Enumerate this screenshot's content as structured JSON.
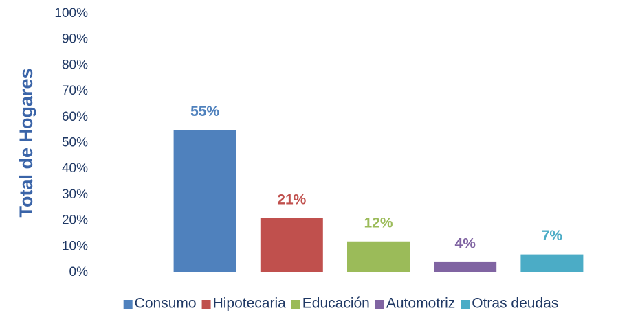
{
  "chart_data": {
    "type": "bar",
    "ylabel": "Total de Hogares",
    "series": [
      {
        "name": "Consumo",
        "color": "#4f81bd",
        "values": [
          55
        ],
        "value_labels": [
          "55%"
        ]
      },
      {
        "name": "Hipotecaria",
        "color": "#c0504d",
        "values": [
          21
        ],
        "value_labels": [
          "21%"
        ]
      },
      {
        "name": "Educación",
        "color": "#9bbb59",
        "values": [
          12
        ],
        "value_labels": [
          "12%"
        ]
      },
      {
        "name": "Automotriz",
        "color": "#8064a2",
        "values": [
          4
        ],
        "value_labels": [
          "4%"
        ]
      },
      {
        "name": "Otras deudas",
        "color": "#4bacc6",
        "values": [
          7
        ],
        "value_labels": [
          "7%"
        ]
      }
    ],
    "ylim": [
      0,
      100
    ],
    "yticks": [
      {
        "value": 0,
        "label": "0%"
      },
      {
        "value": 10,
        "label": "10%"
      },
      {
        "value": 20,
        "label": "20%"
      },
      {
        "value": 30,
        "label": "30%"
      },
      {
        "value": 40,
        "label": "40%"
      },
      {
        "value": 50,
        "label": "50%"
      },
      {
        "value": 60,
        "label": "60%"
      },
      {
        "value": 70,
        "label": "70%"
      },
      {
        "value": 80,
        "label": "80%"
      },
      {
        "value": 90,
        "label": "90%"
      },
      {
        "value": 100,
        "label": "100%"
      }
    ],
    "grid": false,
    "legend": "bottom"
  }
}
